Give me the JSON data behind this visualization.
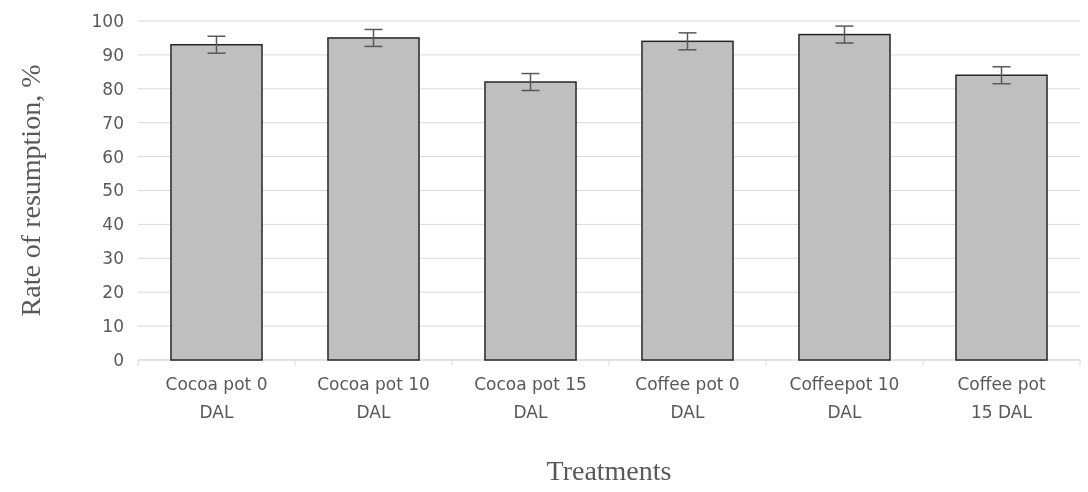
{
  "chart_data": {
    "type": "bar",
    "xlabel": "Treatments",
    "ylabel": "Rate of resumption, %",
    "categories": [
      "Cocoa pot 0 DAL",
      "Cocoa pot 10 DAL",
      "Cocoa pot 15 DAL",
      "Coffee pot 0 DAL",
      "Coffeepot 10 DAL",
      "Coffee pot 15 DAL"
    ],
    "values": [
      93,
      95,
      82,
      94,
      96,
      84
    ],
    "errors": [
      2.5,
      2.5,
      2.5,
      2.5,
      2.5,
      2.5
    ],
    "color": "#bfbfbf",
    "ylim": [
      0,
      100
    ],
    "yticks": [
      0,
      10,
      20,
      30,
      40,
      50,
      60,
      70,
      80,
      90,
      100
    ],
    "grid": "y"
  }
}
